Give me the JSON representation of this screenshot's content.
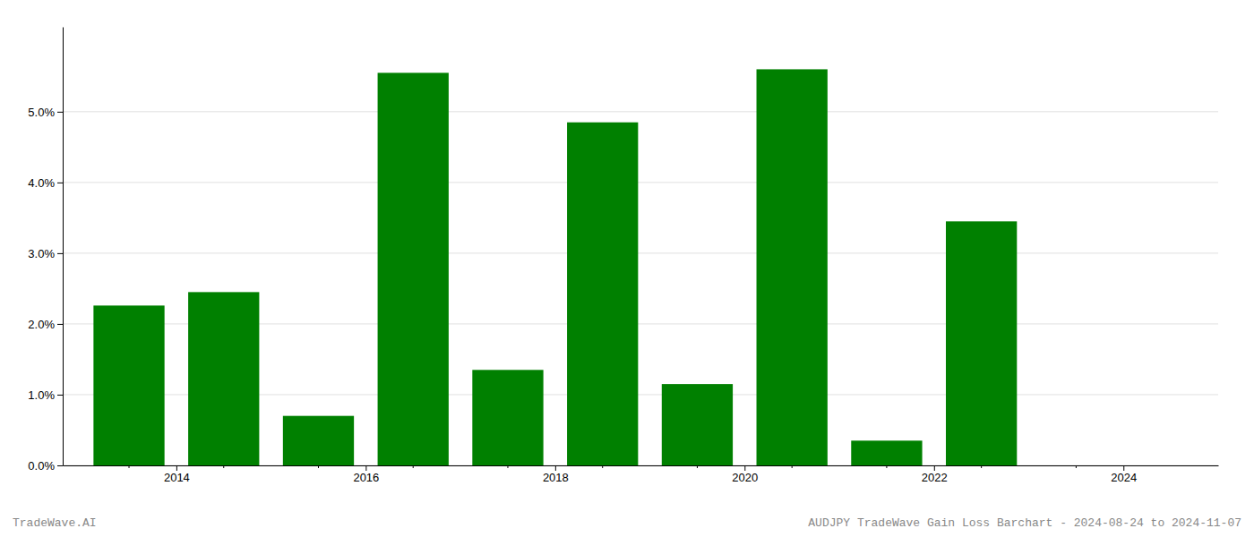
{
  "chart_data": {
    "type": "bar",
    "x": [
      2013,
      2014,
      2015,
      2016,
      2017,
      2018,
      2019,
      2020,
      2021,
      2022,
      2023
    ],
    "values": [
      2.26,
      2.45,
      0.7,
      5.55,
      1.35,
      4.85,
      1.15,
      5.6,
      0.35,
      3.45,
      0.0
    ],
    "color": "#008000",
    "xlim": [
      2012.3,
      2024.5
    ],
    "xticks": [
      {
        "value": 2013.5,
        "label": "2014"
      },
      {
        "value": 2015.5,
        "label": "2016"
      },
      {
        "value": 2017.5,
        "label": "2018"
      },
      {
        "value": 2019.5,
        "label": "2020"
      },
      {
        "value": 2021.5,
        "label": "2022"
      },
      {
        "value": 2023.5,
        "label": "2024"
      }
    ],
    "ylim": [
      0.0,
      6.2
    ],
    "yticks": [
      {
        "value": 0.0,
        "label": "0.0%"
      },
      {
        "value": 1.0,
        "label": "1.0%"
      },
      {
        "value": 2.0,
        "label": "2.0%"
      },
      {
        "value": 3.0,
        "label": "3.0%"
      },
      {
        "value": 4.0,
        "label": "4.0%"
      },
      {
        "value": 5.0,
        "label": "5.0%"
      }
    ],
    "grid": true,
    "annotations": [
      "TradeWave.AI",
      "AUDJPY TradeWave Gain Loss Barchart - 2024-08-24 to 2024-11-07"
    ]
  }
}
